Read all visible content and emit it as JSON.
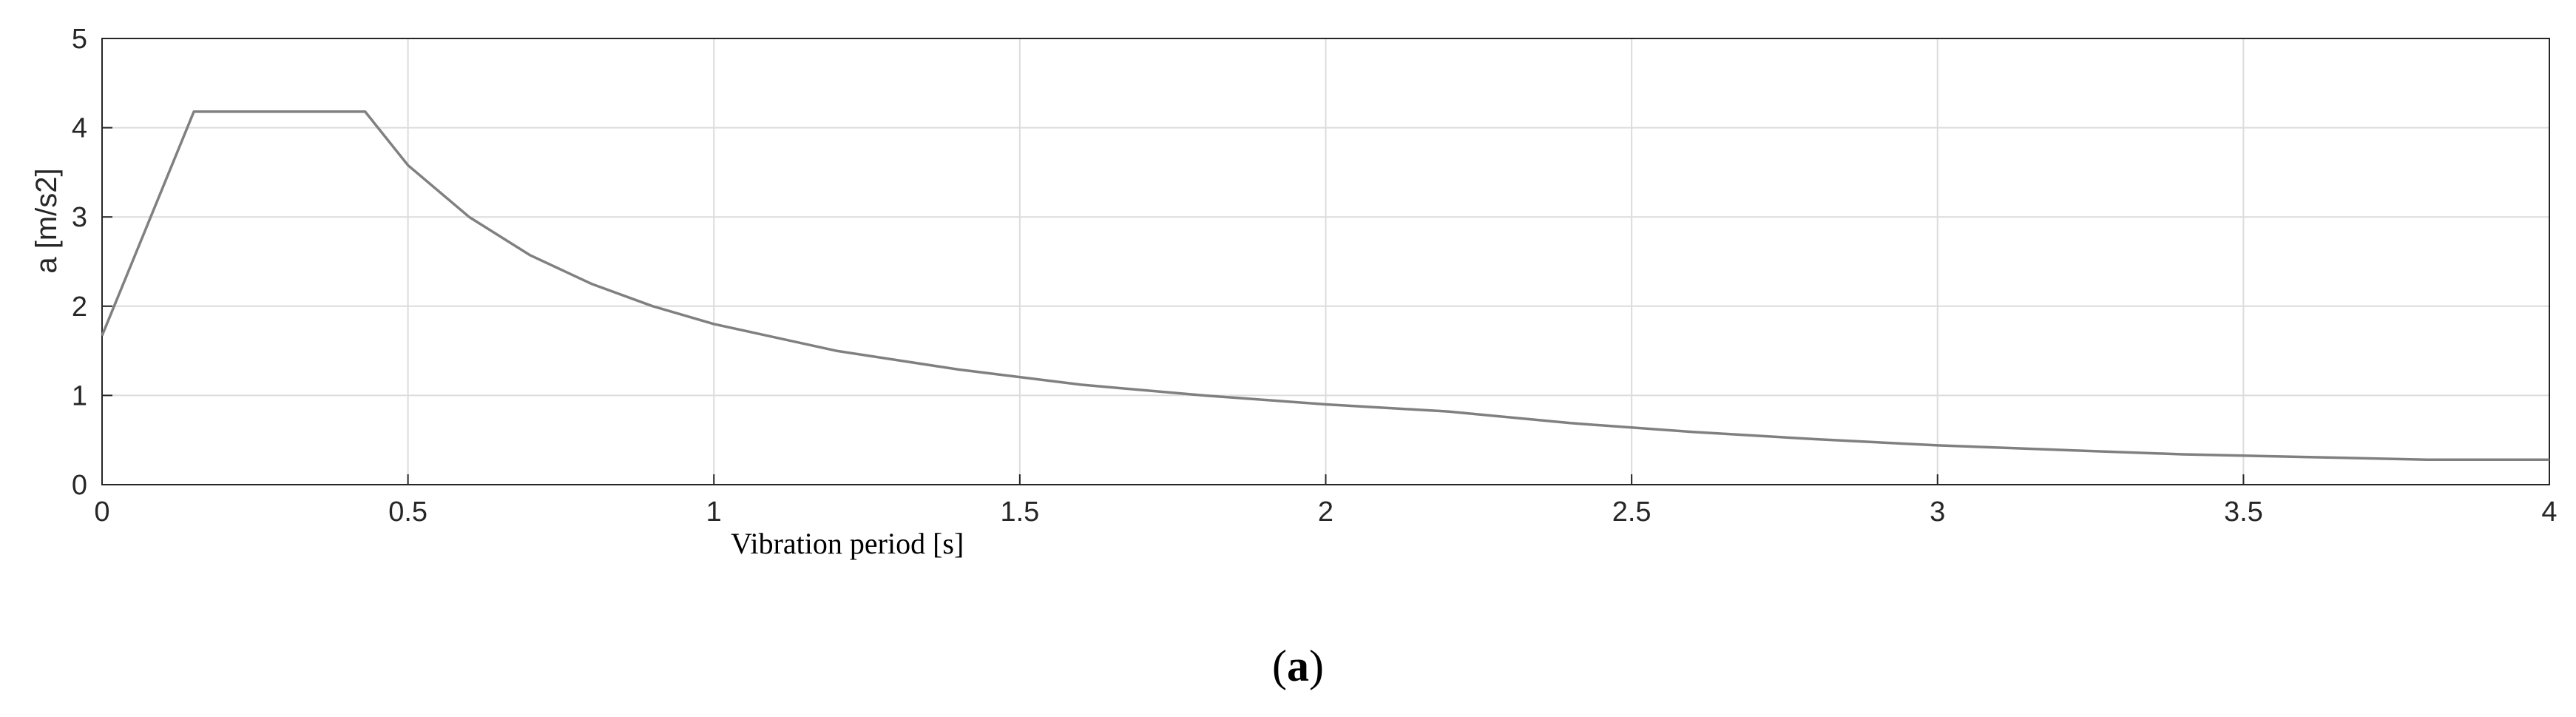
{
  "chart_data": {
    "type": "line",
    "title": "",
    "xlabel": "Vibration period [s]",
    "ylabel": "a [m/s2]",
    "xlim": [
      0,
      4
    ],
    "ylim": [
      0,
      5
    ],
    "xticks": [
      0,
      0.5,
      1,
      1.5,
      2,
      2.5,
      3,
      3.5,
      4
    ],
    "xtick_labels": [
      "0",
      "0.5",
      "1",
      "1.5",
      "2",
      "2.5",
      "3",
      "3.5",
      "4"
    ],
    "yticks": [
      0,
      1,
      2,
      3,
      4,
      5
    ],
    "ytick_labels": [
      "0",
      "1",
      "2",
      "3",
      "4",
      "5"
    ],
    "grid": true,
    "series": [
      {
        "color": "#808080",
        "x": [
          0,
          0.15,
          0.43,
          0.5,
          0.6,
          0.7,
          0.8,
          0.9,
          1.0,
          1.2,
          1.4,
          1.6,
          1.8,
          2.0,
          2.2,
          2.4,
          2.6,
          2.8,
          3.0,
          3.2,
          3.4,
          3.6,
          3.8,
          4.0
        ],
        "y": [
          1.67,
          4.18,
          4.18,
          3.58,
          3.0,
          2.57,
          2.25,
          2.0,
          1.8,
          1.5,
          1.29,
          1.12,
          1.0,
          0.9,
          0.82,
          0.69,
          0.59,
          0.51,
          0.44,
          0.39,
          0.34,
          0.31,
          0.28,
          0.28
        ]
      }
    ]
  },
  "caption": {
    "open": "(",
    "letter": "a",
    "close": ")"
  }
}
